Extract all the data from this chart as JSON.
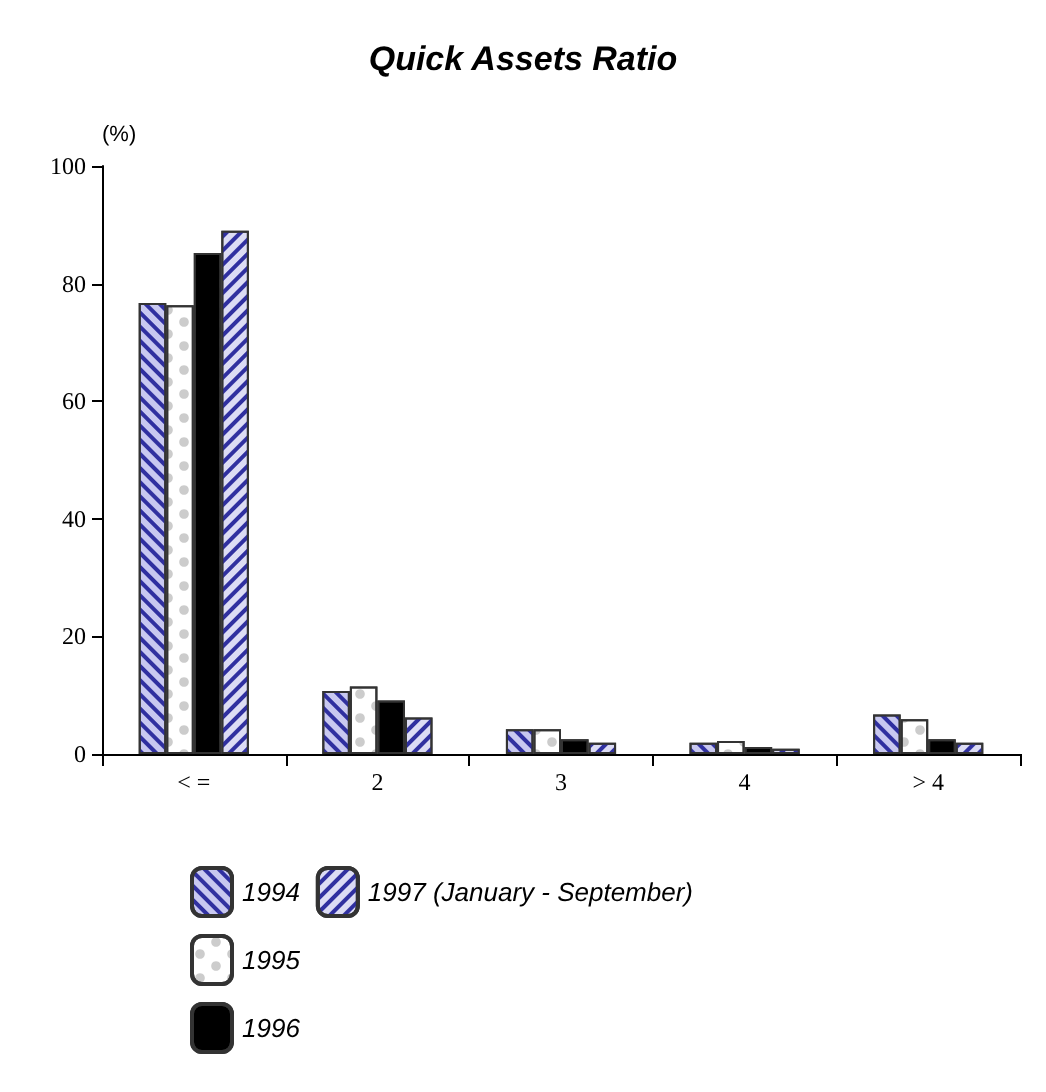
{
  "chart_data": {
    "type": "bar",
    "title": "Quick Assets Ratio",
    "ylabel": "(%)",
    "categories": [
      "< =",
      "2",
      "3",
      "4",
      "> 4"
    ],
    "series": [
      {
        "name": "1994",
        "color": "#c8c8f0",
        "values": [
          76.7,
          10.7,
          4.2,
          1.9,
          6.7
        ]
      },
      {
        "name": "1995",
        "color": "#ffffff",
        "values": [
          76.3,
          11.5,
          4.2,
          2.2,
          5.9
        ]
      },
      {
        "name": "1996",
        "color": "#000000",
        "values": [
          85.2,
          9.1,
          2.5,
          1.2,
          2.5
        ]
      },
      {
        "name": "1997 (January - September)",
        "color": "#dcdcf4",
        "values": [
          89.0,
          6.2,
          1.9,
          0.9,
          1.9
        ]
      }
    ],
    "ylim": [
      0,
      100
    ],
    "yticks": [
      0,
      20,
      40,
      60,
      80,
      100
    ],
    "grid": false,
    "legend": "bottom left"
  }
}
